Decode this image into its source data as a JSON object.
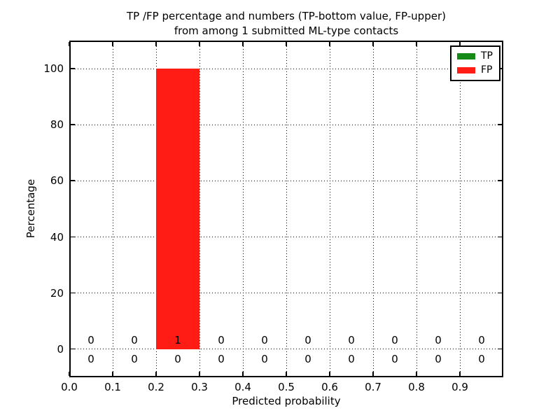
{
  "chart_data": {
    "type": "bar",
    "stacked": true,
    "title_line1": "TP /FP percentage and numbers (TP-bottom value, FP-upper)",
    "title_line2": "from among 1 submitted ML-type contacts",
    "xlabel": "Predicted probability",
    "ylabel": "Percentage",
    "xlim": [
      0.0,
      1.0
    ],
    "ylim": [
      -10,
      110
    ],
    "x_ticks": [
      0.0,
      0.1,
      0.2,
      0.3,
      0.4,
      0.5,
      0.6,
      0.7,
      0.8,
      0.9
    ],
    "x_tick_labels": [
      "0.0",
      "0.1",
      "0.2",
      "0.3",
      "0.4",
      "0.5",
      "0.6",
      "0.7",
      "0.8",
      "0.9"
    ],
    "y_ticks": [
      0,
      20,
      40,
      60,
      80,
      100
    ],
    "y_tick_labels": [
      "0",
      "20",
      "40",
      "60",
      "80",
      "100"
    ],
    "bin_edges": [
      0.0,
      0.1,
      0.2,
      0.3,
      0.4,
      0.5,
      0.6,
      0.7,
      0.8,
      0.9,
      1.0
    ],
    "bin_centers": [
      0.05,
      0.15,
      0.25,
      0.35,
      0.45,
      0.55,
      0.65,
      0.75,
      0.85,
      0.95
    ],
    "grid": true,
    "grid_style": "dotted",
    "legend_position": "upper right",
    "series": [
      {
        "name": "TP",
        "color": "#168a16",
        "percentages": [
          0,
          0,
          0,
          0,
          0,
          0,
          0,
          0,
          0,
          0
        ],
        "counts": [
          0,
          0,
          0,
          0,
          0,
          0,
          0,
          0,
          0,
          0
        ]
      },
      {
        "name": "FP",
        "color": "#ff1c14",
        "percentages": [
          0,
          0,
          100,
          0,
          0,
          0,
          0,
          0,
          0,
          0
        ],
        "counts": [
          0,
          0,
          1,
          0,
          0,
          0,
          0,
          0,
          0,
          0
        ]
      }
    ],
    "annotation_rows": {
      "upper_fp_counts": [
        "0",
        "0",
        "1",
        "0",
        "0",
        "0",
        "0",
        "0",
        "0",
        "0"
      ],
      "lower_tp_counts": [
        "0",
        "0",
        "0",
        "0",
        "0",
        "0",
        "0",
        "0",
        "0",
        "0"
      ]
    },
    "colors": {
      "tp_green": "#168a16",
      "fp_red": "#ff1c14",
      "grid": "#000000",
      "background": "#ffffff"
    }
  }
}
